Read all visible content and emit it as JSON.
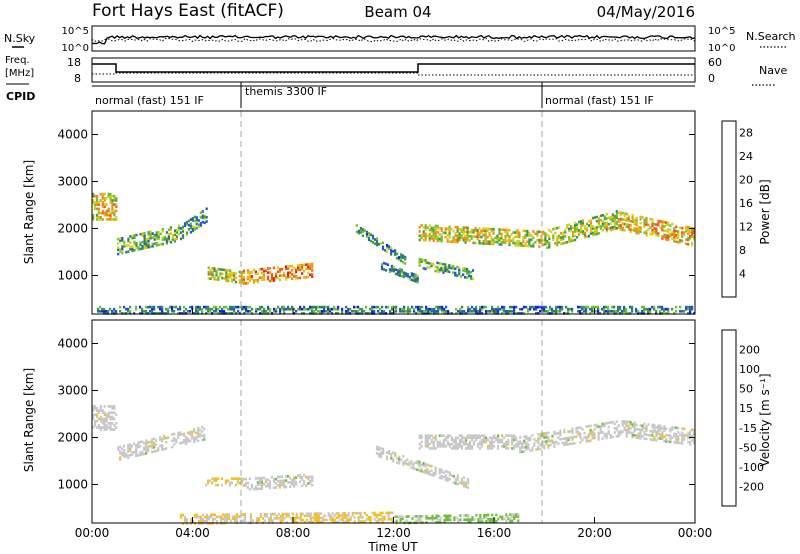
{
  "header": {
    "station": "Fort Hays East (fitACF)",
    "beam": "Beam 04",
    "date": "04/May/2016"
  },
  "params_panel": {
    "nsky_label": "N.Sky",
    "nsky_ticks": [
      "10^5",
      "10^0"
    ],
    "nsearch_label": "N.Search",
    "freq_label_1": "Freq.",
    "freq_label_2": "[MHz]",
    "freq_ticks": [
      "18",
      "8"
    ],
    "nave_label": "Nave",
    "nave_ticks": [
      "60",
      "0"
    ],
    "cpid_label": "CPID",
    "cpid_segments": [
      {
        "label": "normal (fast) 151 IF",
        "start": 0,
        "end": 6
      },
      {
        "label": "themis 3300 IF",
        "start": 6,
        "end": 18
      },
      {
        "label": "normal (fast) 151 IF",
        "start": 18,
        "end": 24
      }
    ]
  },
  "colors": {
    "power": [
      "#1a1ae0",
      "#2255cc",
      "#2e7d6b",
      "#3f9a4a",
      "#6fbf3a",
      "#c8d62a",
      "#f3b515",
      "#f28c18",
      "#ee5a1e",
      "#e01e1e"
    ],
    "velocity": [
      "#e01e1e",
      "#f05a1a",
      "#f39a1a",
      "#f3c11e",
      "#c8c8c8",
      "#6fc03a",
      "#3a9a4a",
      "#2a6fae",
      "#1a3ad0"
    ]
  },
  "chart_data": [
    {
      "type": "heatmap",
      "title": "Power",
      "xlabel": "Time UT",
      "ylabel": "Slant Range [km]",
      "xlim": [
        0,
        24
      ],
      "ylim": [
        180,
        4500
      ],
      "x_ticks": [
        "00:00",
        "04:00",
        "08:00",
        "12:00",
        "16:00",
        "20:00",
        "00:00"
      ],
      "y_ticks": [
        "1000",
        "2000",
        "3000",
        "4000"
      ],
      "colorbar_label": "Power [dB]",
      "colorbar_ticks": [
        "4",
        "8",
        "12",
        "16",
        "20",
        "24",
        "28"
      ],
      "colorbar_range": [
        0,
        30
      ],
      "regions": [
        {
          "t0": 0.0,
          "t1": 1.0,
          "r0": 2450,
          "r1": 2450,
          "w": 550,
          "v": 18
        },
        {
          "t0": 1.0,
          "t1": 3.5,
          "r0": 1600,
          "r1": 1900,
          "w": 320,
          "v": 12
        },
        {
          "t0": 3.5,
          "t1": 4.6,
          "r0": 1900,
          "r1": 2300,
          "w": 280,
          "v": 10
        },
        {
          "t0": 4.6,
          "t1": 6.0,
          "r0": 1050,
          "r1": 950,
          "w": 260,
          "v": 16
        },
        {
          "t0": 6.0,
          "t1": 8.8,
          "r0": 950,
          "r1": 1100,
          "w": 280,
          "v": 22
        },
        {
          "t0": 10.5,
          "t1": 12.5,
          "r0": 2000,
          "r1": 1300,
          "w": 180,
          "v": 9
        },
        {
          "t0": 11.5,
          "t1": 13.0,
          "r0": 1200,
          "r1": 900,
          "w": 150,
          "v": 10
        },
        {
          "t0": 13.0,
          "t1": 15.2,
          "r0": 1250,
          "r1": 1000,
          "w": 200,
          "v": 11
        },
        {
          "t0": 13.0,
          "t1": 18.0,
          "r0": 1900,
          "r1": 1750,
          "w": 320,
          "v": 17
        },
        {
          "t0": 18.0,
          "t1": 21.0,
          "r0": 1750,
          "r1": 2200,
          "w": 380,
          "v": 15
        },
        {
          "t0": 21.0,
          "t1": 24.0,
          "r0": 2150,
          "r1": 1800,
          "w": 380,
          "v": 20
        },
        {
          "t0": 0.2,
          "t1": 24.0,
          "r0": 250,
          "r1": 250,
          "w": 150,
          "v": 8
        }
      ]
    },
    {
      "type": "heatmap",
      "title": "Velocity",
      "xlabel": "Time UT",
      "ylabel": "Slant Range [km]",
      "xlim": [
        0,
        24
      ],
      "ylim": [
        180,
        4500
      ],
      "x_ticks": [
        "00:00",
        "04:00",
        "08:00",
        "12:00",
        "16:00",
        "20:00",
        "00:00"
      ],
      "y_ticks": [
        "1000",
        "2000",
        "3000",
        "4000"
      ],
      "colorbar_label": "Velocity [m s⁻¹]",
      "colorbar_ticks": [
        "-200",
        "-100",
        "-50",
        "-15",
        "15",
        "50",
        "100",
        "200"
      ],
      "colorbar_range": [
        -250,
        250
      ],
      "regions": [
        {
          "t0": 0.0,
          "t1": 1.0,
          "r0": 2400,
          "r1": 2400,
          "w": 500,
          "v": 0
        },
        {
          "t0": 1.0,
          "t1": 4.5,
          "r0": 1650,
          "r1": 2100,
          "w": 300,
          "v": 0
        },
        {
          "t0": 4.5,
          "t1": 6.0,
          "r0": 1050,
          "r1": 1050,
          "w": 160,
          "v": -30
        },
        {
          "t0": 6.0,
          "t1": 8.8,
          "r0": 1000,
          "r1": 1100,
          "w": 260,
          "v": 0
        },
        {
          "t0": 13.0,
          "t1": 17.0,
          "r0": 1900,
          "r1": 1900,
          "w": 300,
          "v": 0
        },
        {
          "t0": 11.3,
          "t1": 15.0,
          "r0": 1700,
          "r1": 1000,
          "w": 200,
          "v": 0
        },
        {
          "t0": 17.0,
          "t1": 21.0,
          "r0": 1850,
          "r1": 2200,
          "w": 360,
          "v": 0
        },
        {
          "t0": 21.0,
          "t1": 24.0,
          "r0": 2200,
          "r1": 2000,
          "w": 360,
          "v": 0
        },
        {
          "t0": 3.5,
          "t1": 12.0,
          "r0": 250,
          "r1": 300,
          "w": 200,
          "v": -30
        },
        {
          "t0": 12.0,
          "t1": 17.0,
          "r0": 250,
          "r1": 300,
          "w": 180,
          "v": 40
        }
      ]
    }
  ]
}
